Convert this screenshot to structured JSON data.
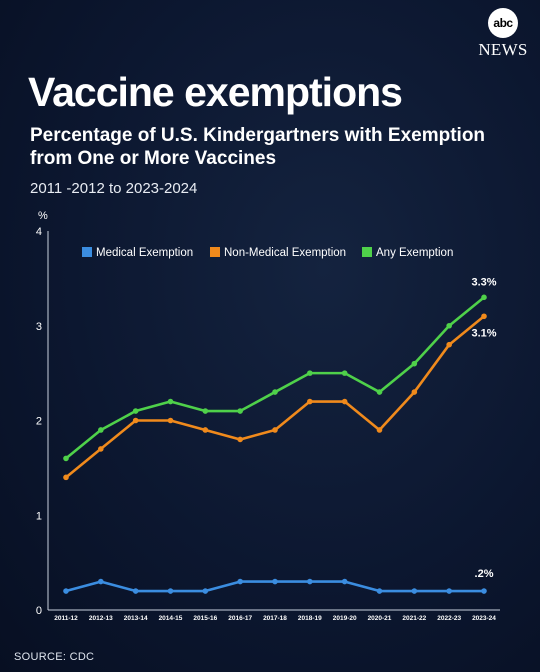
{
  "brand": {
    "logo_text": "abc",
    "network": "NEWS"
  },
  "title": "Vaccine exemptions",
  "subtitle": "Percentage of U.S. Kindergartners with Exemption from One or More Vaccines",
  "date_range": "2011 -2012 to 2023-2024",
  "source": "SOURCE: CDC",
  "chart_data": {
    "type": "line",
    "ylabel": "%",
    "ylim": [
      0,
      4
    ],
    "yticks": [
      "0",
      "1",
      "2",
      "3",
      "4"
    ],
    "grid": false,
    "legend_position": "top",
    "categories": [
      "2011-12",
      "2012-13",
      "2013-14",
      "2014-15",
      "2015-16",
      "2016-17",
      "2017-18",
      "2018-19",
      "2019-20",
      "2020-21",
      "2021-22",
      "2022-23",
      "2023-24"
    ],
    "series": [
      {
        "name": "Medical Exemption",
        "color": "#3b8de0",
        "values": [
          0.2,
          0.3,
          0.2,
          0.2,
          0.2,
          0.3,
          0.3,
          0.3,
          0.3,
          0.2,
          0.2,
          0.2,
          0.2
        ],
        "end_label": ".2%"
      },
      {
        "name": "Non-Medical Exemption",
        "color": "#f08a1c",
        "values": [
          1.4,
          1.7,
          2.0,
          2.0,
          1.9,
          1.8,
          1.9,
          2.2,
          2.2,
          1.9,
          2.3,
          2.8,
          3.1
        ],
        "end_label": "3.1%"
      },
      {
        "name": "Any Exemption",
        "color": "#4fd14a",
        "values": [
          1.6,
          1.9,
          2.1,
          2.2,
          2.1,
          2.1,
          2.3,
          2.5,
          2.5,
          2.3,
          2.6,
          3.0,
          3.3
        ],
        "end_label": "3.3%"
      }
    ]
  }
}
